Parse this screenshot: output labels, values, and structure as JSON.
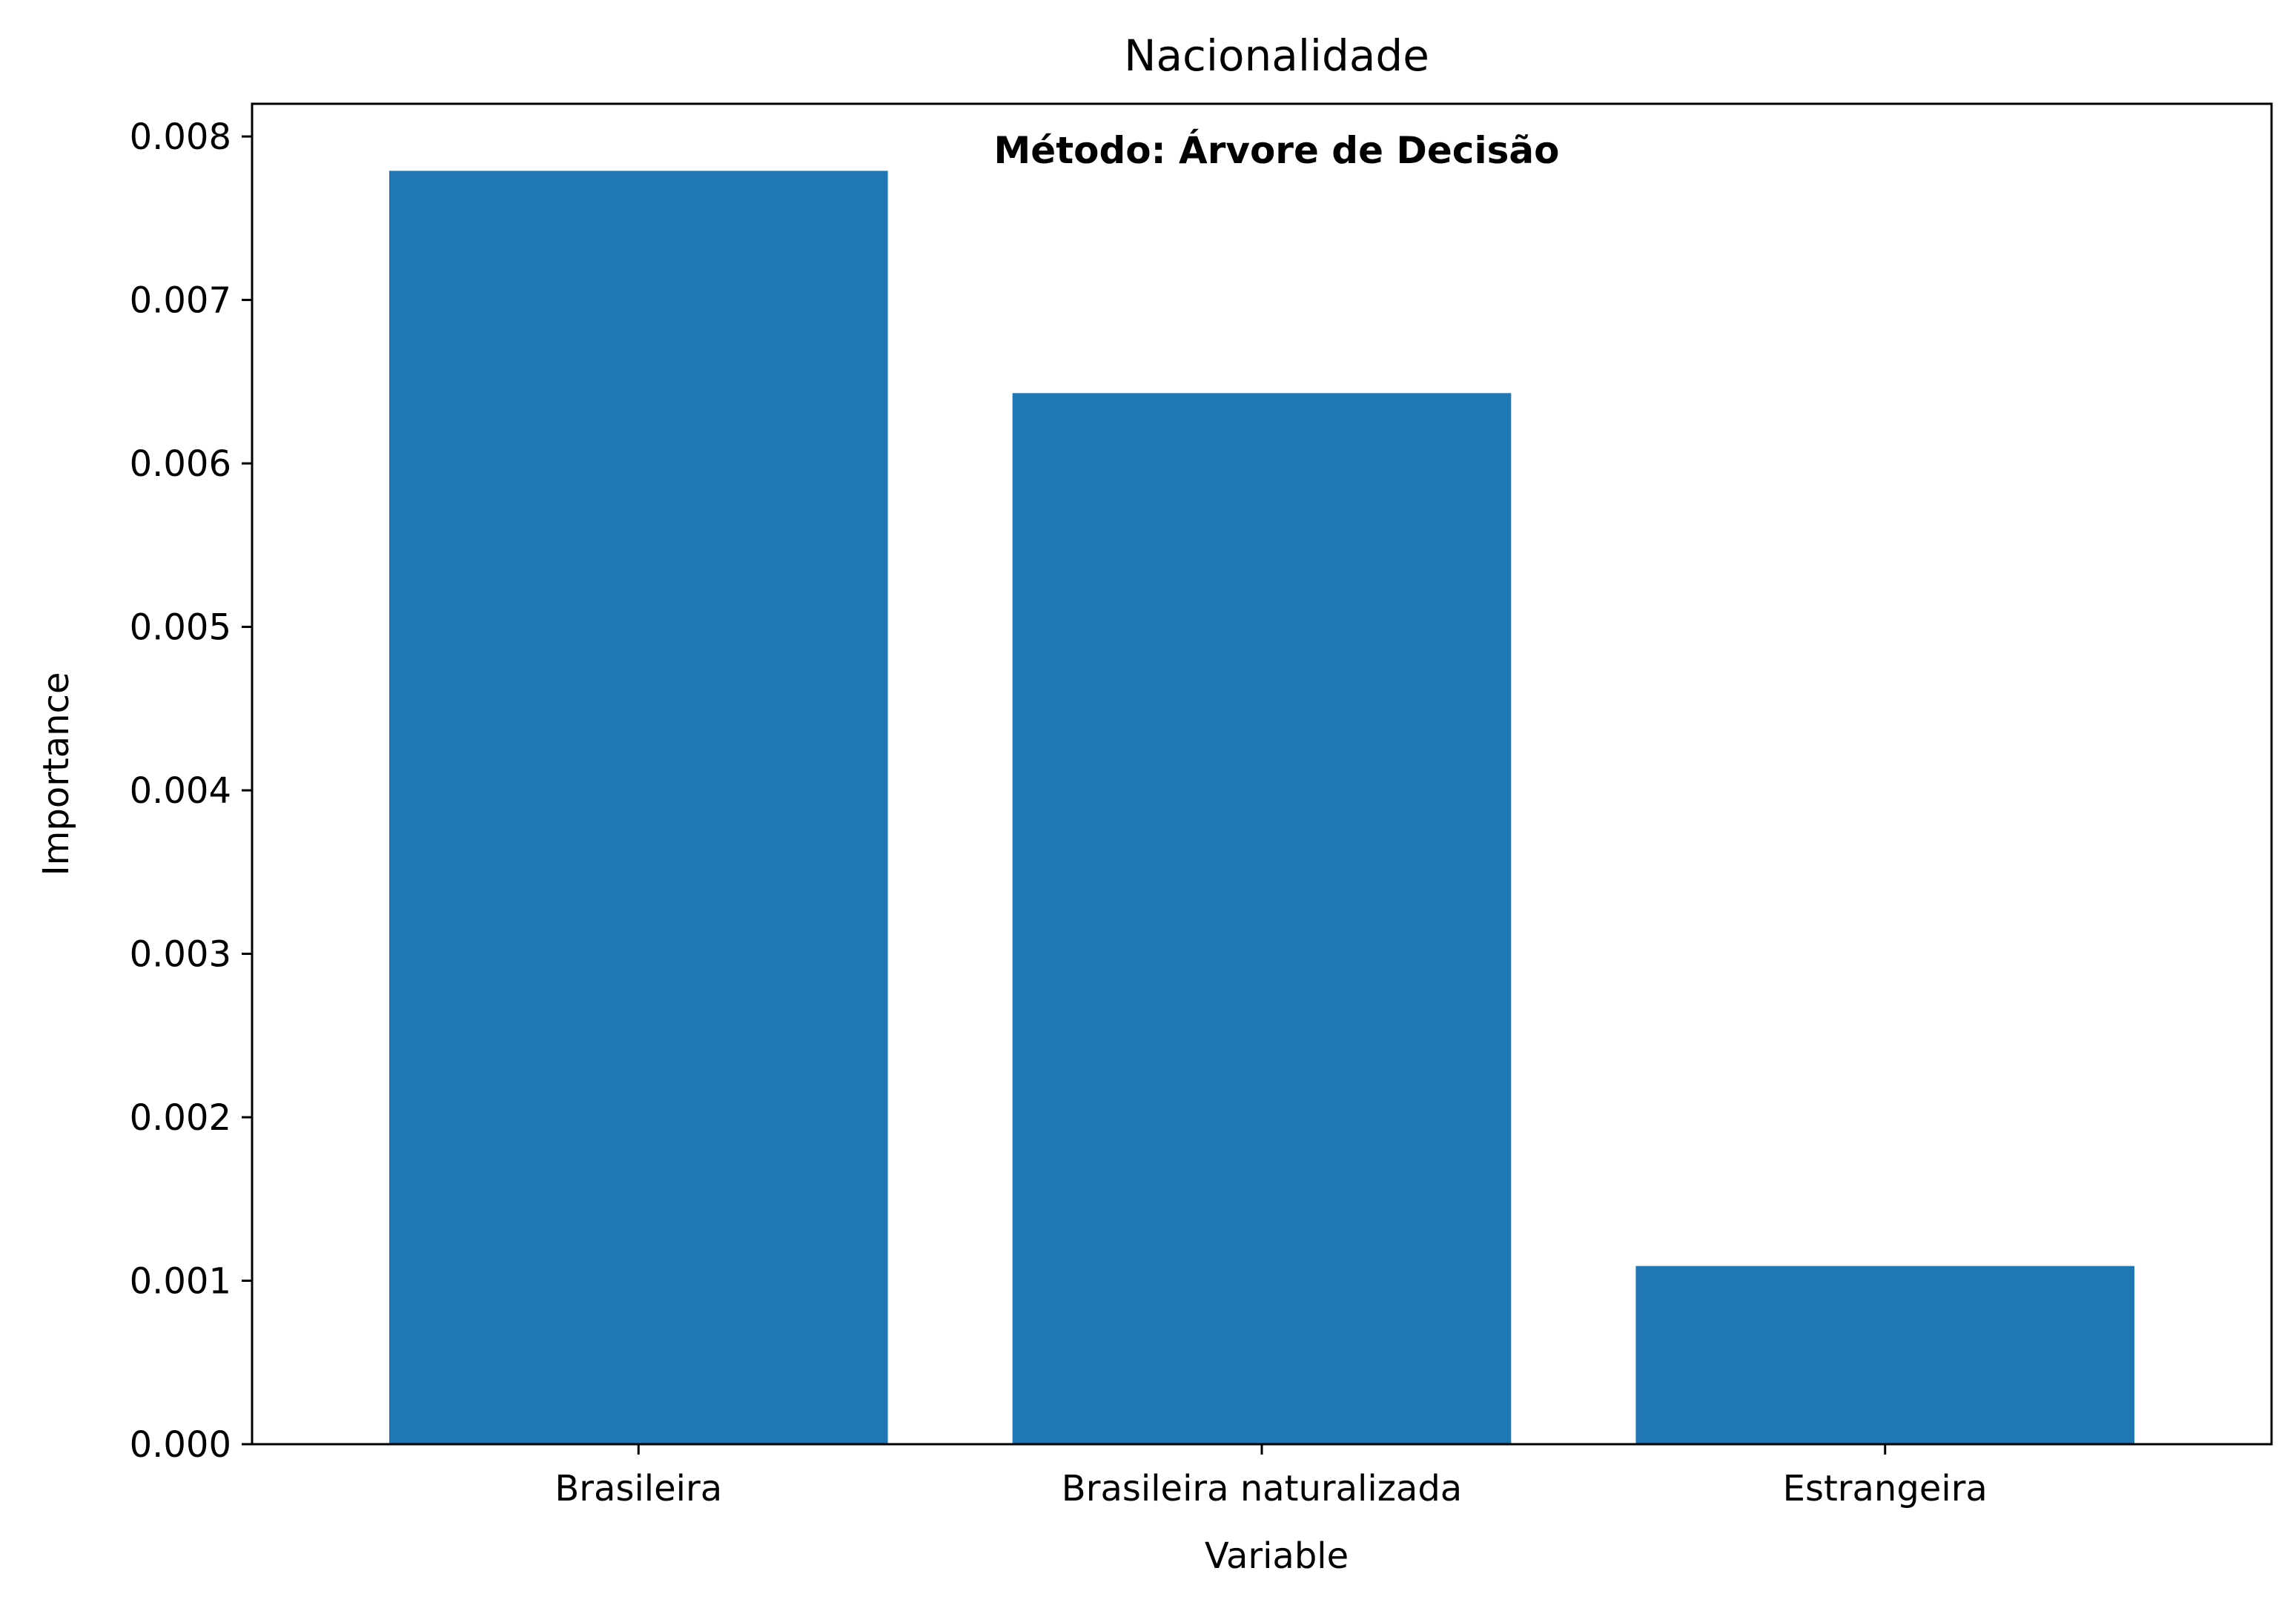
{
  "chart_data": {
    "type": "bar",
    "title": "Nacionalidade",
    "annotation": "Método: Árvore de Decisão",
    "xlabel": "Variable",
    "ylabel": "Importance",
    "categories": [
      "Brasileira",
      "Brasileira naturalizada",
      "Estrangeira"
    ],
    "values": [
      0.00779,
      0.00643,
      0.00109
    ],
    "ylim": [
      0,
      0.0082
    ],
    "yticks": [
      "0.000",
      "0.001",
      "0.002",
      "0.003",
      "0.004",
      "0.005",
      "0.006",
      "0.007",
      "0.008"
    ],
    "bar_color": "#1f77b4",
    "grid": false,
    "legend": "none"
  }
}
